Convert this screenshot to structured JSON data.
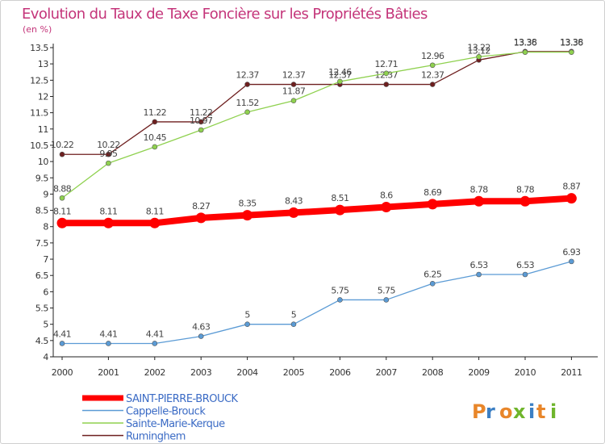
{
  "header": {
    "title": "Evolution du Taux de Taxe Foncière sur les Propriétés Bâties",
    "unit": "(en %)"
  },
  "logo": {
    "text": "Proxiti",
    "colors": [
      "#e8862a",
      "#3b7fc4",
      "#e8862a",
      "#6fb52c",
      "#3b7fc4",
      "#e8862a",
      "#6fb52c"
    ]
  },
  "chart_data": {
    "type": "line",
    "title": "Evolution du Taux de Taxe Foncière sur les Propriétés Bâties",
    "ylabel": "(en %)",
    "xlabel": "",
    "ylim": [
      4,
      13.5
    ],
    "yticks": [
      "4",
      "4.5",
      "5",
      "5.5",
      "6",
      "6.5",
      "7",
      "7.5",
      "8",
      "8.5",
      "9",
      "9.5",
      "10",
      "10.5",
      "11",
      "11.5",
      "12",
      "12.5",
      "13",
      "13.5"
    ],
    "categories": [
      "2000",
      "2001",
      "2002",
      "2003",
      "2004",
      "2005",
      "2006",
      "2007",
      "2008",
      "2009",
      "2010",
      "2011"
    ],
    "grid": false,
    "legend_position": "bottom",
    "series": [
      {
        "name": "Ruminghem",
        "color": "#6e1f1f",
        "values": [
          10.22,
          10.22,
          11.22,
          11.22,
          12.37,
          12.37,
          12.37,
          12.37,
          12.37,
          13.12,
          13.38,
          13.38
        ],
        "labels": [
          "10.22",
          "10.22",
          "11.22",
          "11.22",
          "12.37",
          "12.37",
          "12.37",
          "12.37",
          "12.37",
          "13.12",
          "13.38",
          "13.38"
        ]
      },
      {
        "name": "Sainte-Marie-Kerque",
        "color": "#8fd14f",
        "values": [
          8.88,
          9.95,
          10.45,
          10.97,
          11.52,
          11.87,
          12.46,
          12.71,
          12.96,
          13.22,
          13.36,
          13.36
        ],
        "labels": [
          "8.88",
          "9.95",
          "10.45",
          "10.97",
          "11.52",
          "11.87",
          "12.46",
          "12.71",
          "12.96",
          "13.22",
          "13.36",
          "13.36"
        ]
      },
      {
        "name": "Cappelle-Brouck",
        "color": "#5b9bd5",
        "values": [
          4.41,
          4.41,
          4.41,
          4.63,
          5,
          5,
          5.75,
          5.75,
          6.25,
          6.53,
          6.53,
          6.93
        ],
        "labels": [
          "4.41",
          "4.41",
          "4.41",
          "4.63",
          "5",
          "5",
          "5.75",
          "5.75",
          "6.25",
          "6.53",
          "6.53",
          "6.93"
        ]
      },
      {
        "name": "SAINT-PIERRE-BROUCK",
        "color": "#ff0000",
        "values": [
          8.11,
          8.11,
          8.11,
          8.27,
          8.35,
          8.43,
          8.51,
          8.6,
          8.69,
          8.78,
          8.78,
          8.87
        ],
        "labels": [
          "8.11",
          "8.11",
          "8.11",
          "8.27",
          "8.35",
          "8.43",
          "8.51",
          "8.6",
          "8.69",
          "8.78",
          "8.78",
          "8.87"
        ]
      }
    ],
    "legend": [
      "SAINT-PIERRE-BROUCK",
      "Cappelle-Brouck",
      "Sainte-Marie-Kerque",
      "Ruminghem"
    ]
  }
}
